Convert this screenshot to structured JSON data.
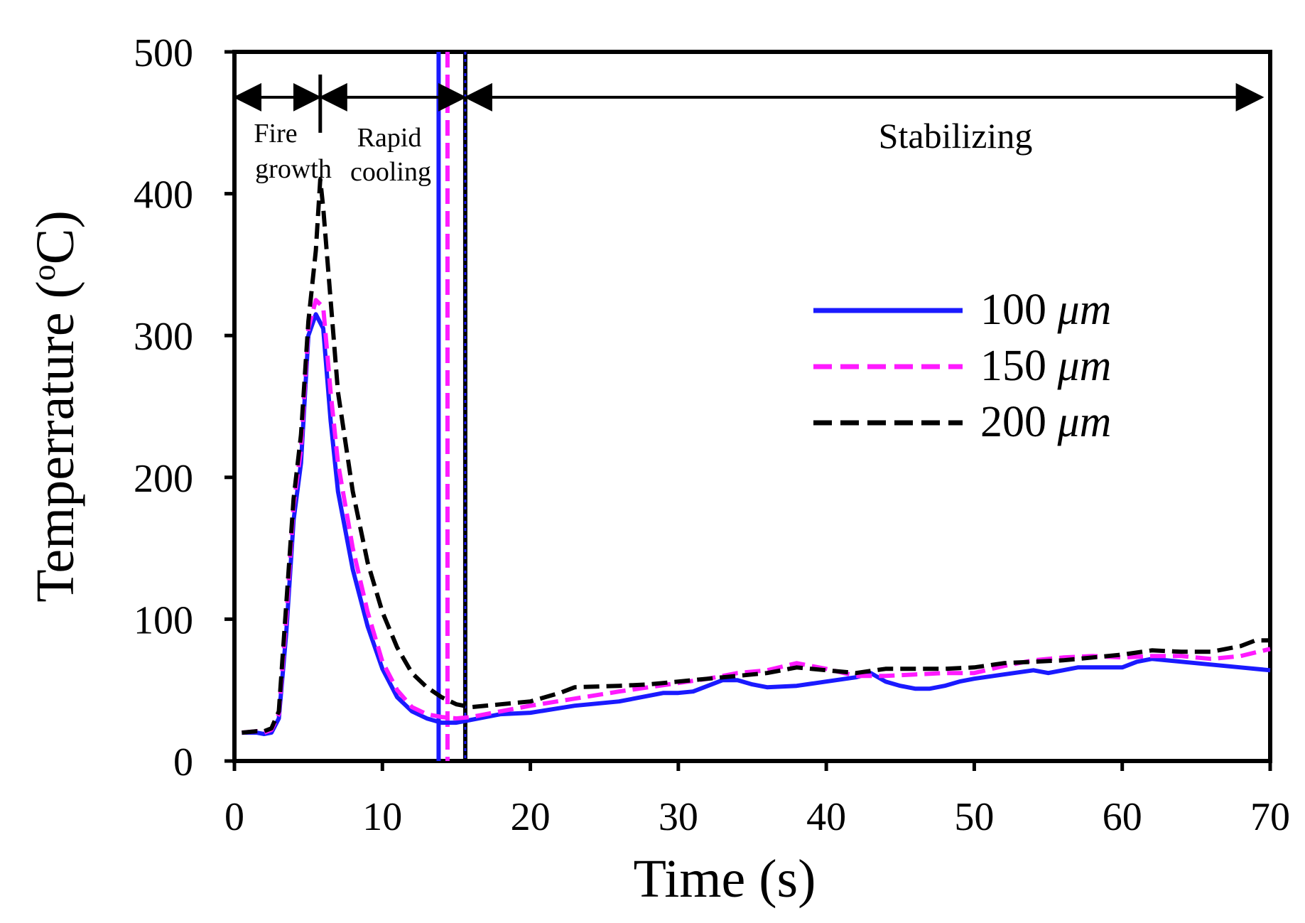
{
  "chart_data": {
    "type": "line",
    "title": "",
    "xlabel": "Time (s)",
    "ylabel": "Temperrature (oC)",
    "ylabel_main": "Temperrature (",
    "ylabel_sup": "o",
    "ylabel_end": "C)",
    "xlim": [
      0,
      70
    ],
    "ylim": [
      0,
      500
    ],
    "xticks": [
      0,
      10,
      20,
      30,
      40,
      50,
      60,
      70
    ],
    "yticks": [
      0,
      100,
      200,
      300,
      400,
      500
    ],
    "grid": false,
    "legend_position": "center-right",
    "series": [
      {
        "name": "100 μm",
        "label_num": "100 ",
        "label_unit": "μm",
        "color": "#1a1aff",
        "style": "solid",
        "x": [
          0.5,
          1.5,
          2.0,
          2.5,
          3.0,
          3.5,
          4.0,
          4.5,
          5.0,
          5.5,
          6.0,
          6.5,
          7.0,
          8.0,
          9.0,
          10.0,
          11.0,
          12.0,
          13.0,
          14.0,
          15.0,
          16.0,
          18.0,
          20.0,
          23.0,
          26.0,
          28.0,
          29.0,
          30.0,
          31.0,
          32.0,
          33.0,
          34.0,
          35.0,
          36.0,
          38.0,
          40.0,
          42.0,
          43.0,
          44.0,
          45.0,
          46.0,
          47.0,
          48.0,
          49.0,
          50.0,
          52.0,
          54.0,
          55.0,
          56.0,
          57.0,
          59.0,
          60.0,
          61.0,
          62.0,
          64.0,
          66.0,
          68.0,
          70.0
        ],
        "y": [
          20,
          20,
          19,
          20,
          30,
          90,
          170,
          210,
          300,
          315,
          305,
          240,
          190,
          135,
          95,
          65,
          45,
          35,
          30,
          27,
          27,
          29,
          33,
          34,
          39,
          42,
          46,
          48,
          48,
          49,
          53,
          57,
          57,
          54,
          52,
          53,
          56,
          59,
          62,
          56,
          53,
          51,
          51,
          53,
          56,
          58,
          61,
          64,
          62,
          64,
          66,
          66,
          66,
          70,
          72,
          70,
          68,
          66,
          64
        ]
      },
      {
        "name": "150 μm",
        "label_num": "150 ",
        "label_unit": "μm",
        "color": "#ff1aff",
        "style": "dashed",
        "x": [
          0.5,
          1.5,
          2.0,
          2.5,
          3.0,
          3.5,
          4.0,
          4.5,
          5.0,
          5.5,
          6.0,
          6.5,
          7.0,
          8.0,
          9.0,
          10.0,
          11.0,
          12.0,
          13.0,
          14.0,
          15.0,
          16.0,
          18.0,
          20.0,
          23.0,
          26.0,
          28.0,
          30.0,
          32.0,
          34.0,
          36.0,
          38.0,
          40.0,
          42.0,
          44.0,
          46.0,
          48.0,
          50.0,
          52.0,
          54.0,
          56.0,
          58.0,
          60.0,
          62.0,
          64.0,
          66.0,
          68.0,
          70.0
        ],
        "y": [
          20,
          21,
          20,
          22,
          33,
          100,
          180,
          220,
          305,
          325,
          320,
          260,
          210,
          150,
          105,
          70,
          50,
          38,
          33,
          31,
          30,
          31,
          35,
          39,
          44,
          49,
          52,
          55,
          58,
          62,
          64,
          69,
          65,
          60,
          60,
          61,
          62,
          62,
          67,
          71,
          73,
          74,
          73,
          74,
          74,
          72,
          74,
          79
        ]
      },
      {
        "name": "200 μm",
        "label_num": "200 ",
        "label_unit": "μm",
        "color": "#000000",
        "style": "dashed",
        "x": [
          0.5,
          1.5,
          2.0,
          2.5,
          3.0,
          3.5,
          4.0,
          4.5,
          5.0,
          5.5,
          5.8,
          6.0,
          6.5,
          7.0,
          8.0,
          9.0,
          10.0,
          11.0,
          12.0,
          13.0,
          14.0,
          15.0,
          16.0,
          18.0,
          20.0,
          22.0,
          23.0,
          26.0,
          28.0,
          30.0,
          32.0,
          34.0,
          36.0,
          38.0,
          40.0,
          42.0,
          44.0,
          46.0,
          48.0,
          50.0,
          52.0,
          54.0,
          56.0,
          58.0,
          60.0,
          62.0,
          64.0,
          66.0,
          68.0,
          69.0,
          70.0
        ],
        "y": [
          20,
          21,
          21,
          23,
          35,
          110,
          185,
          230,
          310,
          360,
          410,
          390,
          325,
          260,
          190,
          140,
          105,
          80,
          62,
          52,
          45,
          40,
          38,
          40,
          42,
          48,
          52,
          53,
          54,
          56,
          58,
          60,
          62,
          66,
          64,
          62,
          65,
          65,
          65,
          66,
          69,
          70,
          71,
          73,
          75,
          78,
          77,
          77,
          81,
          85,
          85
        ]
      }
    ],
    "vertical_lines": [
      {
        "x": 13.8,
        "color": "#1a1aff",
        "style": "solid"
      },
      {
        "x": 14.4,
        "color": "#ff1aff",
        "style": "dashed"
      },
      {
        "x": 15.6,
        "color": "#000000",
        "style": "solid"
      },
      {
        "x": 15.6,
        "color": "#1a1aff",
        "style": "dotted"
      }
    ],
    "phase_annotations": {
      "fire_growth_line1": "Fire",
      "fire_growth_line2": "growth",
      "rapid_cooling_line1": "Rapid",
      "rapid_cooling_line2": "cooling",
      "stabilizing": "Stabilizing",
      "arrow_level": 468,
      "fire_growth_range": [
        0,
        5.8
      ],
      "rapid_cooling_range": [
        5.8,
        15.6
      ],
      "stabilizing_range": [
        15.6,
        69.5
      ]
    }
  }
}
